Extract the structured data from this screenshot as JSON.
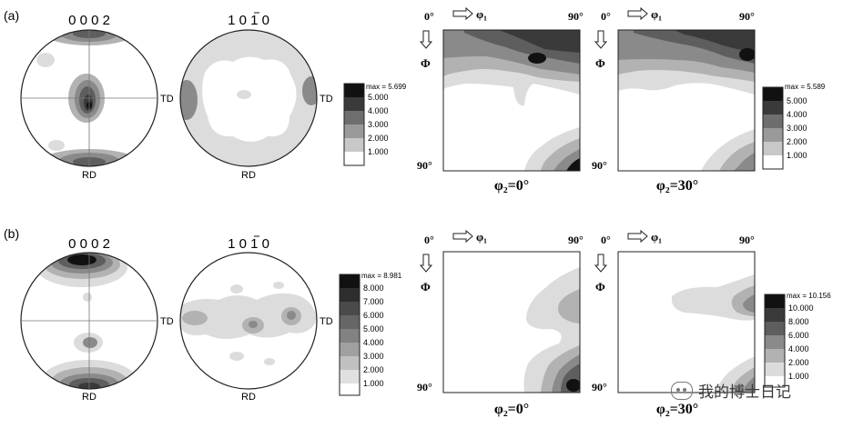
{
  "panels": [
    {
      "id": "a",
      "label": "(a)",
      "pf_0002_title": "0 0 0 2",
      "pf_1010_title": "1 0 1 0",
      "rd_label": "RD",
      "td_label": "TD",
      "pf_legend": {
        "max": "max = 5.699",
        "levels": [
          "5.000",
          "4.000",
          "3.000",
          "2.000",
          "1.000"
        ]
      },
      "odf_legend": {
        "max": "max = 5.589",
        "levels": [
          "5.000",
          "4.000",
          "3.000",
          "2.000",
          "1.000"
        ]
      },
      "odf_left_caption": "φ₂=0°",
      "odf_right_caption": "φ₂=30°"
    },
    {
      "id": "b",
      "label": "(b)",
      "pf_0002_title": "0 0 0 2",
      "pf_1010_title": "1 0 1 0",
      "rd_label": "RD",
      "td_label": "TD",
      "pf_legend": {
        "max": "max = 8.981",
        "levels": [
          "8.000",
          "7.000",
          "6.000",
          "5.000",
          "4.000",
          "3.000",
          "2.000",
          "1.000"
        ]
      },
      "odf_legend": {
        "max": "max = 10.156",
        "levels": [
          "10.000",
          "8.000",
          "6.000",
          "4.000",
          "2.000",
          "1.000"
        ]
      },
      "odf_left_caption": "φ₂=0°",
      "odf_right_caption": "φ₂=30°"
    }
  ],
  "odf_axes": {
    "phi1": "φ₁",
    "Phi": "Φ",
    "zero": "0°",
    "ninety": "90°"
  },
  "watermark": "我的博士日记",
  "colors": {
    "level_1": "#ffffff",
    "level_2": "#dcdcdc",
    "level_3": "#b2b2b2",
    "level_4": "#8a8a8a",
    "level_5": "#5e5e5e",
    "level_6": "#3a3a3a",
    "level_7": "#111111"
  }
}
